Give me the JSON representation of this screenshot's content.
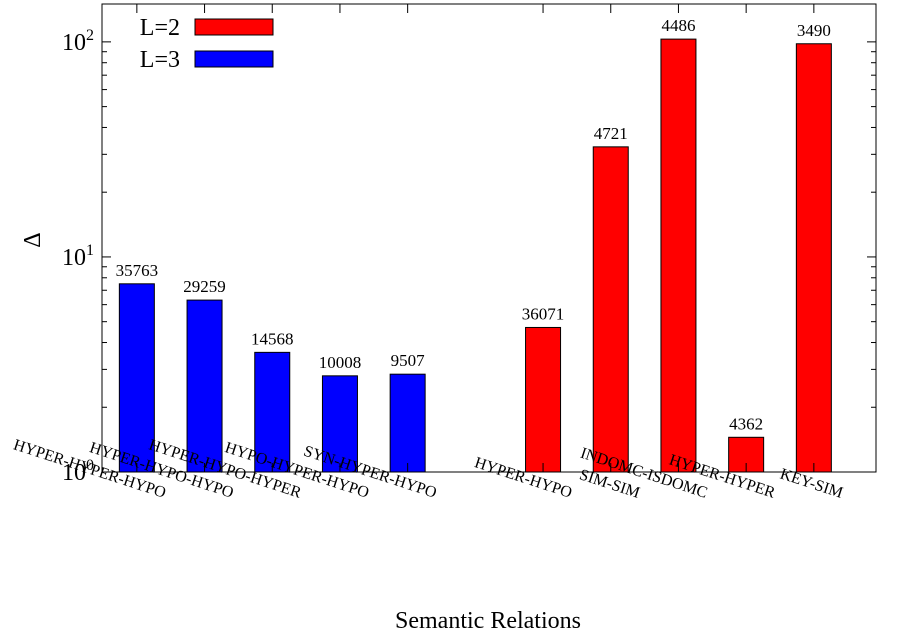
{
  "chart_data": {
    "type": "bar",
    "xlabel": "Semantic Relations",
    "ylabel": "Δ",
    "yscale": "log",
    "ylim": [
      1,
      150
    ],
    "yticks": [
      {
        "value": 1,
        "base": "10",
        "exp": "0"
      },
      {
        "value": 10,
        "base": "10",
        "exp": "1"
      },
      {
        "value": 100,
        "base": "10",
        "exp": "2"
      }
    ],
    "legend_position": "top-left",
    "series": [
      {
        "name": "L=2",
        "color": "#ff0000",
        "bars": [
          {
            "category": "HYPER-HYPO",
            "value": 4.7,
            "label": "36071"
          },
          {
            "category": "SIM-SIM",
            "value": 32.5,
            "label": "4721"
          },
          {
            "category": "INDOMC-ISDOMC",
            "value": 103,
            "label": "4486"
          },
          {
            "category": "HYPER-HYPER",
            "value": 1.45,
            "label": "4362"
          },
          {
            "category": "KEY-SIM",
            "value": 98,
            "label": "3490"
          }
        ]
      },
      {
        "name": "L=3",
        "color": "#0000ff",
        "bars": [
          {
            "category": "HYPER-HYPER-HYPO",
            "value": 7.5,
            "label": "35763"
          },
          {
            "category": "HYPER-HYPO-HYPO",
            "value": 6.3,
            "label": "29259"
          },
          {
            "category": "HYPER-HYPO-HYPER",
            "value": 3.6,
            "label": "14568"
          },
          {
            "category": "HYPO-HYPER-HYPO",
            "value": 2.8,
            "label": "10008"
          },
          {
            "category": "SYN-HYPER-HYPO",
            "value": 2.85,
            "label": "9507"
          }
        ]
      }
    ],
    "display_order": [
      {
        "series": 1,
        "bar": 0
      },
      {
        "series": 1,
        "bar": 1
      },
      {
        "series": 1,
        "bar": 2
      },
      {
        "series": 1,
        "bar": 3
      },
      {
        "series": 1,
        "bar": 4
      },
      null,
      {
        "series": 0,
        "bar": 0
      },
      {
        "series": 0,
        "bar": 1
      },
      {
        "series": 0,
        "bar": 2
      },
      {
        "series": 0,
        "bar": 3
      },
      {
        "series": 0,
        "bar": 4
      }
    ]
  }
}
